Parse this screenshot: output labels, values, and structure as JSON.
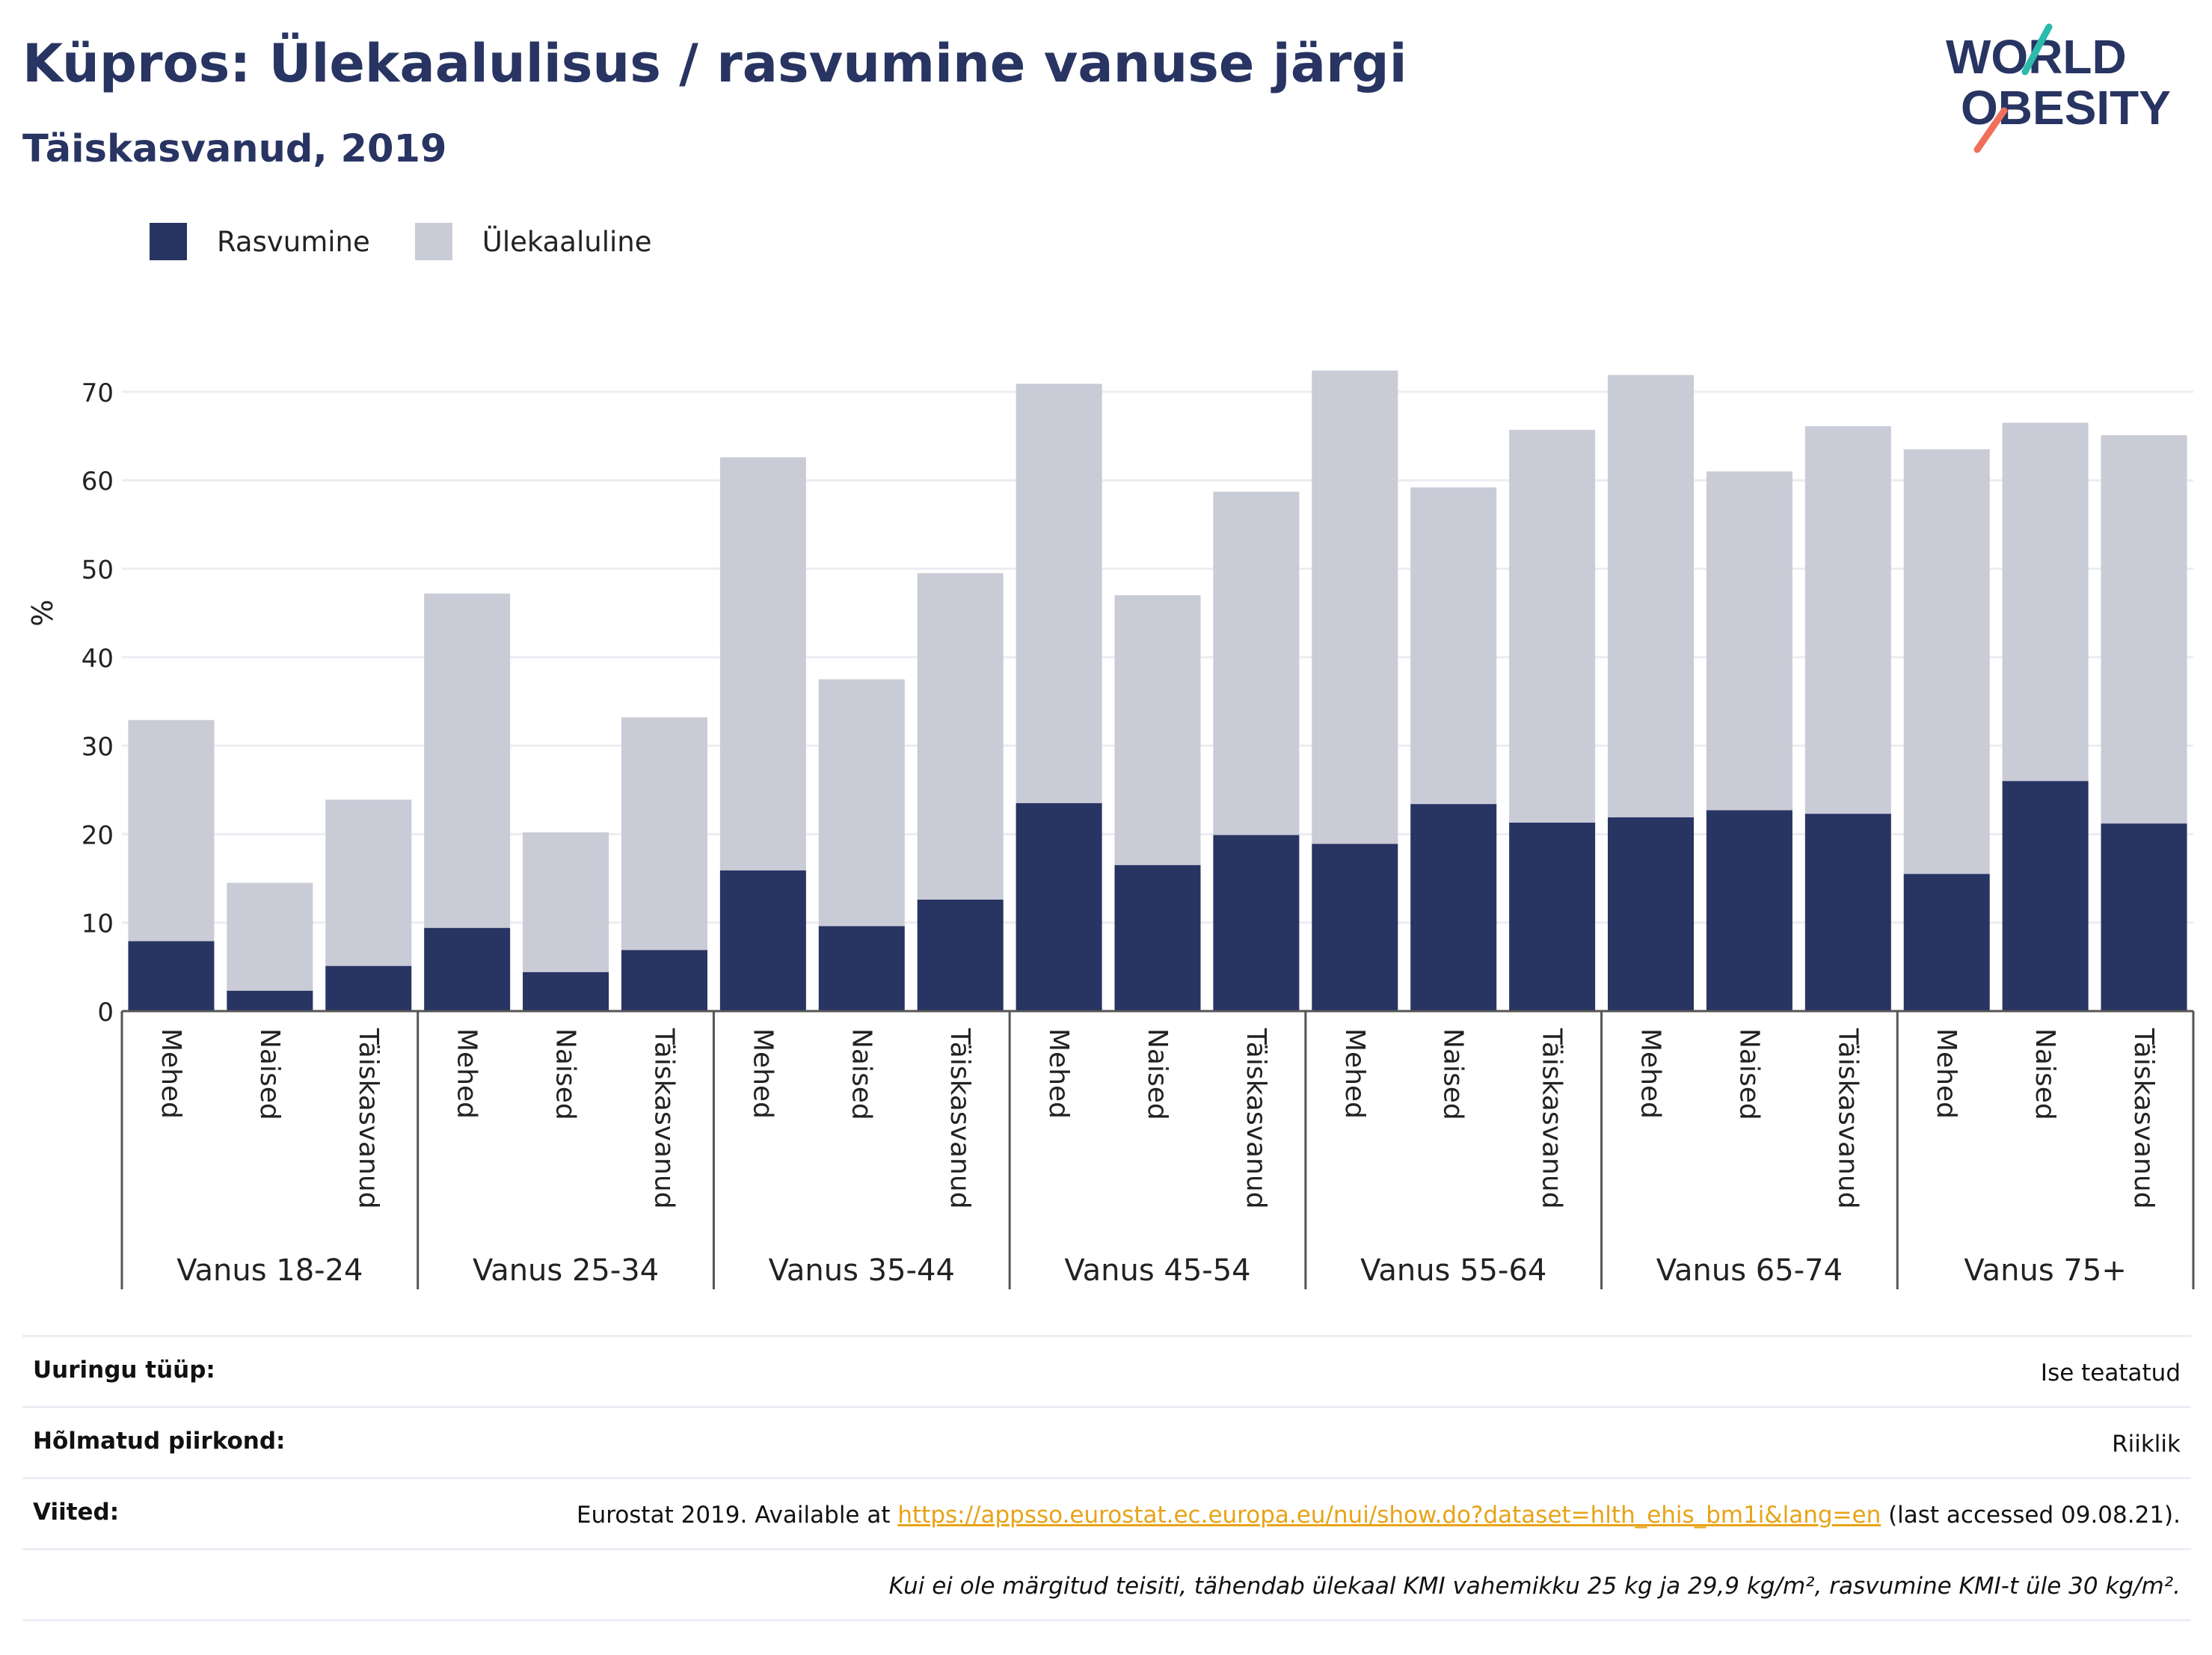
{
  "header": {
    "title": "Küpros: Ülekaalulisus / rasvumine vanuse järgi",
    "subtitle": "Täiskasvanud, 2019",
    "logo_line1": "WORLD",
    "logo_line2": "OBESITY"
  },
  "colors": {
    "obesity": "#283462",
    "overweight": "#c9cbd7",
    "title": "#283462",
    "link": "#e8a317",
    "gridline": "#ececf2",
    "logo_teal": "#2bbbad",
    "logo_coral": "#f0705a"
  },
  "chart_data": {
    "type": "bar",
    "stacked": true,
    "ylabel": "%",
    "ylim": [
      0,
      72
    ],
    "yticks": [
      0,
      10,
      20,
      30,
      40,
      50,
      60,
      70
    ],
    "grid": true,
    "legend_position": "top-left",
    "groups": [
      "Vanus 18-24",
      "Vanus 25-34",
      "Vanus 35-44",
      "Vanus 45-54",
      "Vanus 55-64",
      "Vanus 65-74",
      "Vanus 75+"
    ],
    "categories": [
      "Mehed",
      "Naised",
      "Täiskasvanud",
      "Mehed",
      "Naised",
      "Täiskasvanud",
      "Mehed",
      "Naised",
      "Täiskasvanud",
      "Mehed",
      "Naised",
      "Täiskasvanud",
      "Mehed",
      "Naised",
      "Täiskasvanud",
      "Mehed",
      "Naised",
      "Täiskasvanud",
      "Mehed",
      "Naised",
      "Täiskasvanud"
    ],
    "series": [
      {
        "name": "Rasvumine",
        "values": [
          7.9,
          2.3,
          5.1,
          9.4,
          4.4,
          6.9,
          15.9,
          9.6,
          12.6,
          23.5,
          16.5,
          19.9,
          18.9,
          23.4,
          21.3,
          21.9,
          22.7,
          22.3,
          15.5,
          26.0,
          21.2
        ]
      },
      {
        "name": "Ülekaaluline",
        "values": [
          25.0,
          12.2,
          18.8,
          37.8,
          15.8,
          26.3,
          46.7,
          27.9,
          36.9,
          47.4,
          30.5,
          38.8,
          53.5,
          35.8,
          44.4,
          50.0,
          38.3,
          43.8,
          48.0,
          40.5,
          43.9
        ]
      }
    ]
  },
  "info": {
    "rows": [
      {
        "label": "Uuringu tüüp:",
        "value": "Ise teatatud"
      },
      {
        "label": "Hõlmatud piirkond:",
        "value": "Riiklik"
      }
    ],
    "references_label": "Viited:",
    "references_prefix": "Eurostat 2019. Available at ",
    "references_link": "https://appsso.eurostat.ec.europa.eu/nui/show.do?dataset=hlth_ehis_bm1i&lang=en",
    "references_suffix": " (last accessed 09.08.21).",
    "note": "Kui ei ole märgitud teisiti, tähendab ülekaal KMI vahemikku 25 kg ja 29,9 kg/m², rasvumine KMI-t üle 30 kg/m²."
  }
}
